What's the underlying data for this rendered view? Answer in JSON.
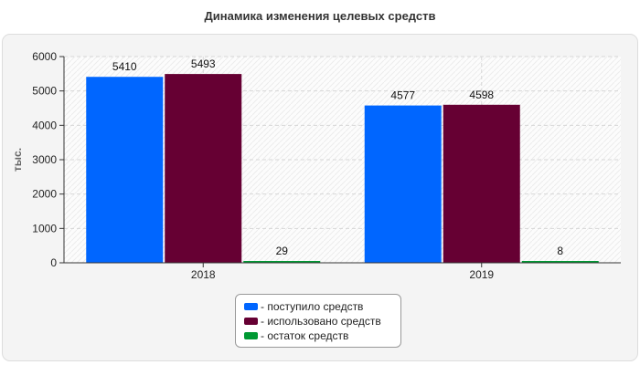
{
  "chart_data": {
    "type": "bar",
    "title": "Динамика изменения целевых средств",
    "xlabel": "",
    "ylabel": "тыс.",
    "categories": [
      "2018",
      "2019"
    ],
    "ylim": [
      0,
      6000
    ],
    "yticks": [
      0,
      1000,
      2000,
      3000,
      4000,
      5000,
      6000
    ],
    "grid": true,
    "legend_position": "bottom",
    "series": [
      {
        "name": "- поступило средств",
        "values": [
          5410,
          4577
        ],
        "color": "#0066ff"
      },
      {
        "name": "- использовано средств",
        "values": [
          5493,
          4598
        ],
        "color": "#660033"
      },
      {
        "name": "- остаток средств",
        "values": [
          29,
          8
        ],
        "color": "#009933"
      }
    ]
  }
}
